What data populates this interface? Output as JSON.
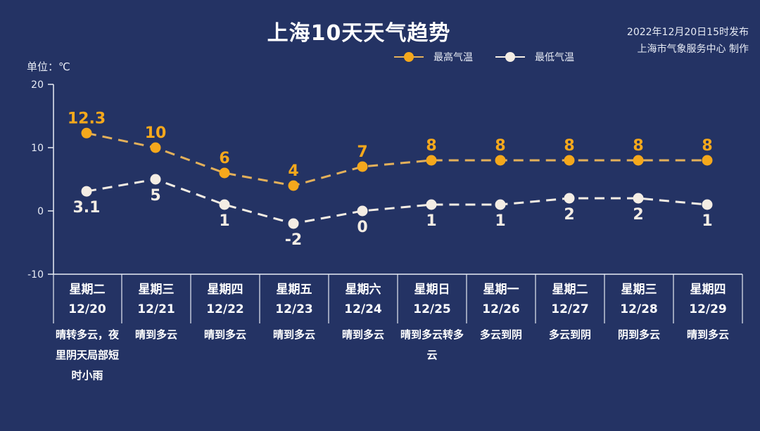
{
  "header": {
    "title": "上海10天天气趋势",
    "publish_time": "2022年12月20日15时发布",
    "publisher": "上海市气象服务中心 制作"
  },
  "legend": [
    {
      "label": "最高气温",
      "color": "#f5a81c"
    },
    {
      "label": "最低气温",
      "color": "#f4ede4"
    }
  ],
  "unit_label": "单位：℃",
  "colors": {
    "background": "#243364",
    "high": "#f5a81c",
    "high_line": "#e3b05a",
    "low": "#f4ede4",
    "axis": "#e8ecf5"
  },
  "days": [
    {
      "dow": "星期二",
      "date": "12/20",
      "desc": "晴转多云，夜里阴天局部短时小雨"
    },
    {
      "dow": "星期三",
      "date": "12/21",
      "desc": "晴到多云"
    },
    {
      "dow": "星期四",
      "date": "12/22",
      "desc": "晴到多云"
    },
    {
      "dow": "星期五",
      "date": "12/23",
      "desc": "晴到多云"
    },
    {
      "dow": "星期六",
      "date": "12/24",
      "desc": "晴到多云"
    },
    {
      "dow": "星期日",
      "date": "12/25",
      "desc": "晴到多云转多云"
    },
    {
      "dow": "星期一",
      "date": "12/26",
      "desc": "多云到阴"
    },
    {
      "dow": "星期二",
      "date": "12/27",
      "desc": "多云到阴"
    },
    {
      "dow": "星期三",
      "date": "12/28",
      "desc": "阴到多云"
    },
    {
      "dow": "星期四",
      "date": "12/29",
      "desc": "晴到多云"
    }
  ],
  "chart_data": {
    "type": "line",
    "title": "上海10天天气趋势",
    "xlabel": "",
    "ylabel": "单位：℃",
    "categories": [
      "12/20",
      "12/21",
      "12/22",
      "12/23",
      "12/24",
      "12/25",
      "12/26",
      "12/27",
      "12/28",
      "12/29"
    ],
    "series": [
      {
        "name": "最高气温",
        "values": [
          12.3,
          10,
          6,
          4,
          7,
          8,
          8,
          8,
          8,
          8
        ],
        "labels": [
          "12.3",
          "10",
          "6",
          "4",
          "7",
          "8",
          "8",
          "8",
          "8",
          "8"
        ],
        "color": "#f5a81c",
        "style": "dashed",
        "label_position": "above"
      },
      {
        "name": "最低气温",
        "values": [
          3.1,
          5,
          1,
          -2,
          0,
          1,
          1,
          2,
          2,
          1
        ],
        "labels": [
          "3.1",
          "5",
          "1",
          "-2",
          "0",
          "1",
          "1",
          "2",
          "2",
          "1"
        ],
        "color": "#f4ede4",
        "style": "dashed",
        "label_position": "below"
      }
    ],
    "ylim": [
      -10,
      20
    ],
    "yticks": [
      20,
      10,
      0,
      -10
    ],
    "ytick_labels": [
      "20",
      "10",
      "0",
      "-10"
    ],
    "grid": false,
    "legend_position": "top-right"
  }
}
